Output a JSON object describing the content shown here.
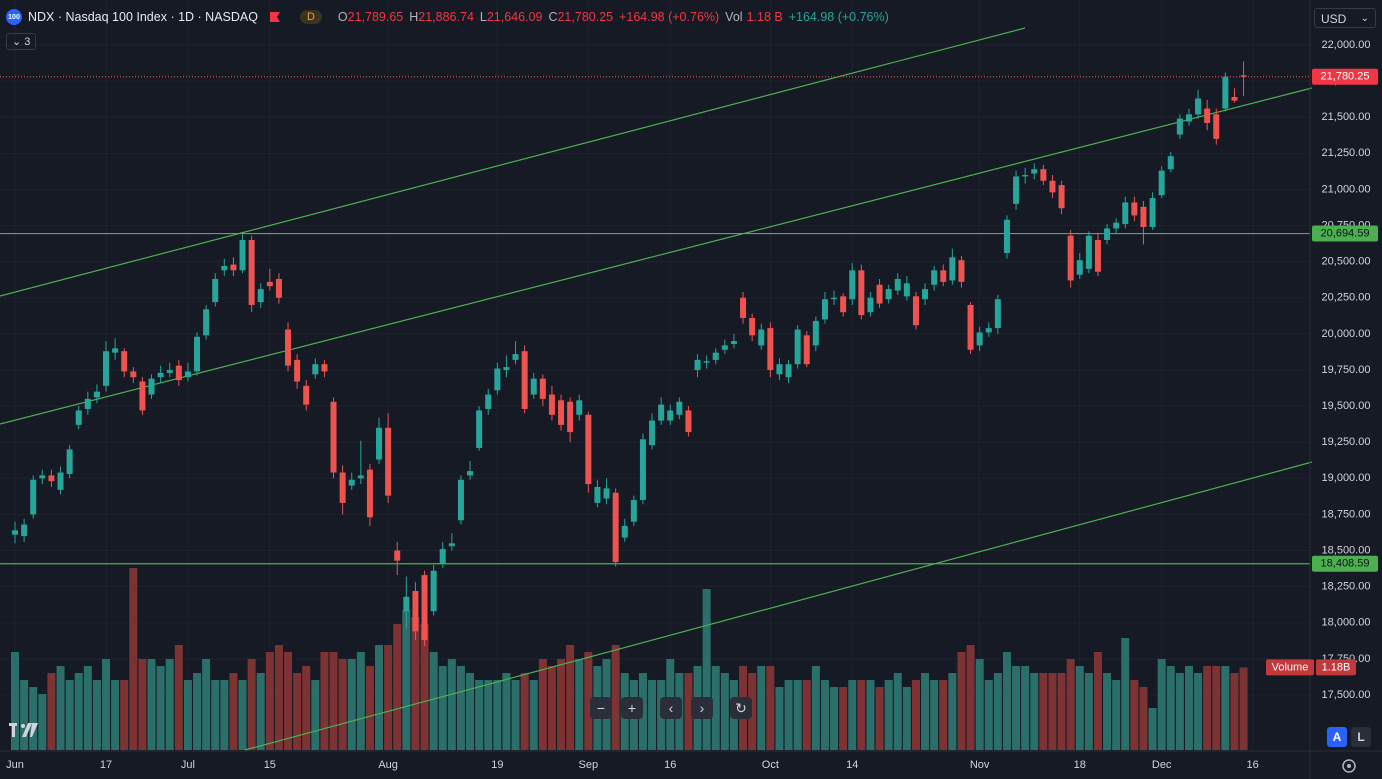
{
  "chart_data": {
    "type": "candlestick",
    "header": {
      "badge": "100",
      "symbol": "NDX · Nasdaq 100 Index · 1D · NASDAQ",
      "session": "D",
      "o": {
        "label": "O",
        "value": "21,789.65"
      },
      "h": {
        "label": "H",
        "value": "21,886.74"
      },
      "l": {
        "label": "L",
        "value": "21,646.09"
      },
      "c": {
        "label": "C",
        "value": "21,780.25"
      },
      "change": "+164.98 (+0.76%)",
      "vol": {
        "label": "Vol",
        "value": "1.18 B"
      },
      "vol_change": "+164.98 (+0.76%)",
      "indicators": "3"
    },
    "currency": "USD",
    "volume_label": {
      "name": "Volume",
      "value": "1.18B"
    },
    "scale_buttons": [
      "A",
      "L"
    ],
    "up_color": "#26a69a",
    "down_color": "#ef5350",
    "volume_up_color": "#2b6f6a",
    "volume_down_color": "#7d3334",
    "level_color": "#4caf50",
    "levels": [
      {
        "value": 20694.59,
        "label": "20,694.59"
      },
      {
        "value": 18408.59,
        "label": "18,408.59"
      }
    ],
    "xlim": [
      -1.65,
      142.3
    ],
    "ylim": [
      17119,
      22311.5
    ],
    "yticks": [
      {
        "value": 22000,
        "label": "22,000.00"
      },
      {
        "value": 21750,
        "label": "21,750.00"
      },
      {
        "value": 21500,
        "label": "21,500.00"
      },
      {
        "value": 21250,
        "label": "21,250.00"
      },
      {
        "value": 21000,
        "label": "21,000.00"
      },
      {
        "value": 20750,
        "label": "20,750.00"
      },
      {
        "value": 20500,
        "label": "20,500.00"
      },
      {
        "value": 20250,
        "label": "20,250.00"
      },
      {
        "value": 20000,
        "label": "20,000.00"
      },
      {
        "value": 19750,
        "label": "19,750.00"
      },
      {
        "value": 19500,
        "label": "19,500.00"
      },
      {
        "value": 19250,
        "label": "19,250.00"
      },
      {
        "value": 19000,
        "label": "19,000.00"
      },
      {
        "value": 18750,
        "label": "18,750.00"
      },
      {
        "value": 18500,
        "label": "18,500.00"
      },
      {
        "value": 18250,
        "label": "18,250.00"
      },
      {
        "value": 18000,
        "label": "18,000.00"
      },
      {
        "value": 17750,
        "label": "17,750.00"
      },
      {
        "value": 17500,
        "label": "17,500.00"
      }
    ],
    "xticks": [
      {
        "value": 0,
        "label": "Jun"
      },
      {
        "value": 10,
        "label": "17"
      },
      {
        "value": 19,
        "label": "Jul"
      },
      {
        "value": 28,
        "label": "15"
      },
      {
        "value": 41,
        "label": "Aug"
      },
      {
        "value": 53,
        "label": "19"
      },
      {
        "value": 63,
        "label": "Sep"
      },
      {
        "value": 72,
        "label": "16"
      },
      {
        "value": 83,
        "label": "Oct"
      },
      {
        "value": 92,
        "label": "14"
      },
      {
        "value": 106,
        "label": "Nov"
      },
      {
        "value": 117,
        "label": "18"
      },
      {
        "value": 126,
        "label": "Dec"
      },
      {
        "value": 136,
        "label": "16"
      }
    ],
    "open": [
      18610,
      18600,
      18750,
      19000,
      19020,
      18920,
      19030,
      19370,
      19480,
      19560,
      19640,
      19870,
      19880,
      19740,
      19670,
      19580,
      19700,
      19730,
      19780,
      19700,
      19740,
      19990,
      20220,
      20440,
      20480,
      20440,
      20650,
      20220,
      20360,
      20380,
      20030,
      19820,
      19640,
      19720,
      19790,
      19530,
      19040,
      18950,
      19000,
      19060,
      19130,
      19350,
      18500,
      18080,
      18220,
      18330,
      18080,
      18410,
      18530,
      18710,
      19020,
      19210,
      19480,
      19610,
      19750,
      19820,
      19880,
      19580,
      19690,
      19580,
      19540,
      19530,
      19440,
      19440,
      18830,
      18860,
      18900,
      18590,
      18700,
      18850,
      19230,
      19400,
      19400,
      19440,
      19470,
      19750,
      19800,
      19820,
      19890,
      19930,
      20250,
      20110,
      19920,
      20040,
      19720,
      19700,
      19790,
      19990,
      19920,
      20100,
      20240,
      20260,
      20240,
      20440,
      20150,
      20340,
      20240,
      20300,
      20260,
      20260,
      20240,
      20340,
      20440,
      20370,
      20510,
      20200,
      19920,
      20010,
      20040,
      20560,
      20900,
      21090,
      21110,
      21140,
      21060,
      21030,
      20680,
      20410,
      20450,
      20650,
      20650,
      20730,
      20760,
      20910,
      20880,
      20740,
      20960,
      21140,
      21380,
      21470,
      21520,
      21560,
      21520,
      21560,
      21640,
      21789.65
    ],
    "high": [
      18700,
      18720,
      19020,
      19060,
      19060,
      19080,
      19230,
      19500,
      19600,
      19650,
      19950,
      19970,
      19900,
      19770,
      19700,
      19720,
      19780,
      19800,
      19820,
      19800,
      20010,
      20200,
      20420,
      20520,
      20530,
      20690,
      20680,
      20350,
      20450,
      20420,
      20080,
      19860,
      19680,
      19830,
      19820,
      19560,
      19090,
      19040,
      19260,
      19100,
      19420,
      19450,
      18560,
      18320,
      18280,
      18360,
      18400,
      18560,
      18620,
      19020,
      19120,
      19500,
      19620,
      19800,
      19850,
      19950,
      19920,
      19730,
      19720,
      19640,
      19580,
      19560,
      19580,
      19460,
      18990,
      19000,
      18930,
      18720,
      18880,
      19310,
      19450,
      19560,
      19510,
      19560,
      19500,
      19860,
      19850,
      19900,
      19960,
      20000,
      20290,
      20140,
      20070,
      20080,
      19830,
      19820,
      20060,
      20020,
      20120,
      20290,
      20300,
      20280,
      20490,
      20480,
      20290,
      20380,
      20340,
      20420,
      20400,
      20290,
      20350,
      20470,
      20480,
      20590,
      20540,
      20220,
      20050,
      20080,
      20270,
      20820,
      21130,
      21150,
      21180,
      21170,
      21100,
      21060,
      20720,
      20560,
      20710,
      20700,
      20760,
      20800,
      20950,
      20950,
      20920,
      20980,
      21160,
      21260,
      21520,
      21560,
      21690,
      21620,
      21560,
      21810,
      21700,
      21886.74
    ],
    "low": [
      18550,
      18560,
      18720,
      18960,
      18940,
      18890,
      19000,
      19340,
      19440,
      19520,
      19600,
      19820,
      19700,
      19660,
      19440,
      19550,
      19660,
      19700,
      19640,
      19670,
      19710,
      19960,
      20190,
      20400,
      20400,
      20420,
      20150,
      20180,
      20300,
      20210,
      19740,
      19620,
      19470,
      19690,
      19700,
      19000,
      18750,
      18920,
      18960,
      18670,
      19100,
      18830,
      18330,
      17960,
      17880,
      17840,
      18050,
      18380,
      18500,
      18680,
      18990,
      19190,
      19440,
      19580,
      19700,
      19790,
      19450,
      19550,
      19500,
      19400,
      19330,
      19250,
      19400,
      18900,
      18800,
      18820,
      18390,
      18560,
      18670,
      18820,
      19200,
      19370,
      19370,
      19410,
      19290,
      19700,
      19760,
      19790,
      19860,
      19900,
      20070,
      19950,
      19890,
      19700,
      19680,
      19660,
      19760,
      19770,
      19880,
      20070,
      20200,
      20120,
      20200,
      20100,
      20120,
      20180,
      20210,
      20270,
      20230,
      20030,
      20200,
      20300,
      20330,
      20340,
      20320,
      19860,
      19880,
      19980,
      20000,
      20520,
      20860,
      21040,
      21070,
      21030,
      20940,
      20830,
      20320,
      20380,
      20420,
      20400,
      20620,
      20690,
      20730,
      20780,
      20620,
      20720,
      20940,
      21120,
      21350,
      21440,
      21490,
      21410,
      21310,
      21540,
      21600,
      21646.09
    ],
    "close": [
      18640,
      18680,
      18990,
      19020,
      18980,
      19040,
      19200,
      19470,
      19550,
      19600,
      19880,
      19900,
      19740,
      19700,
      19470,
      19690,
      19730,
      19750,
      19680,
      19740,
      19980,
      20170,
      20380,
      20470,
      20440,
      20650,
      20200,
      20310,
      20330,
      20250,
      19780,
      19670,
      19510,
      19790,
      19740,
      19040,
      18830,
      18990,
      19020,
      18730,
      19350,
      18880,
      18430,
      18180,
      17940,
      17880,
      18360,
      18510,
      18550,
      18990,
      19050,
      19470,
      19580,
      19760,
      19770,
      19860,
      19480,
      19690,
      19550,
      19440,
      19370,
      19320,
      19540,
      18960,
      18940,
      18930,
      18420,
      18670,
      18850,
      19270,
      19400,
      19510,
      19470,
      19530,
      19320,
      19820,
      19810,
      19870,
      19920,
      19950,
      20110,
      19990,
      20030,
      19750,
      19790,
      19790,
      20030,
      19790,
      20090,
      20240,
      20250,
      20150,
      20440,
      20130,
      20250,
      20210,
      20310,
      20380,
      20350,
      20060,
      20310,
      20440,
      20360,
      20530,
      20360,
      19890,
      20010,
      20040,
      20240,
      20790,
      21090,
      21100,
      21140,
      21060,
      20980,
      20870,
      20370,
      20510,
      20680,
      20430,
      20730,
      20770,
      20910,
      20820,
      20740,
      20940,
      21130,
      21230,
      21490,
      21520,
      21630,
      21460,
      21350,
      21780,
      21615.27,
      21780.25
    ],
    "volume": [
      1.4,
      1.0,
      0.9,
      0.8,
      1.1,
      1.2,
      1.0,
      1.1,
      1.2,
      1.0,
      1.3,
      1.0,
      1.0,
      2.6,
      1.3,
      1.3,
      1.2,
      1.3,
      1.5,
      1.0,
      1.1,
      1.3,
      1.0,
      1.0,
      1.1,
      1.0,
      1.3,
      1.1,
      1.4,
      1.5,
      1.4,
      1.1,
      1.2,
      1.0,
      1.4,
      1.4,
      1.3,
      1.3,
      1.4,
      1.2,
      1.5,
      1.5,
      1.8,
      2.0,
      1.9,
      1.8,
      1.4,
      1.2,
      1.3,
      1.2,
      1.1,
      1.0,
      1.0,
      1.0,
      1.1,
      1.0,
      1.1,
      1.0,
      1.3,
      1.2,
      1.3,
      1.5,
      1.3,
      1.4,
      1.2,
      1.3,
      1.5,
      1.1,
      1.0,
      1.1,
      1.0,
      1.0,
      1.3,
      1.1,
      1.1,
      1.2,
      2.3,
      1.2,
      1.1,
      1.0,
      1.2,
      1.1,
      1.2,
      1.2,
      0.9,
      1.0,
      1.0,
      1.0,
      1.2,
      1.0,
      0.9,
      0.9,
      1.0,
      1.0,
      1.0,
      0.9,
      1.0,
      1.1,
      0.9,
      1.0,
      1.1,
      1.0,
      1.0,
      1.1,
      1.4,
      1.5,
      1.3,
      1.0,
      1.1,
      1.4,
      1.2,
      1.2,
      1.1,
      1.1,
      1.1,
      1.1,
      1.3,
      1.2,
      1.1,
      1.4,
      1.1,
      1.0,
      1.6,
      1.0,
      0.9,
      0.6,
      1.3,
      1.2,
      1.1,
      1.2,
      1.1,
      1.2,
      1.2,
      1.2,
      1.1,
      1.18
    ]
  }
}
